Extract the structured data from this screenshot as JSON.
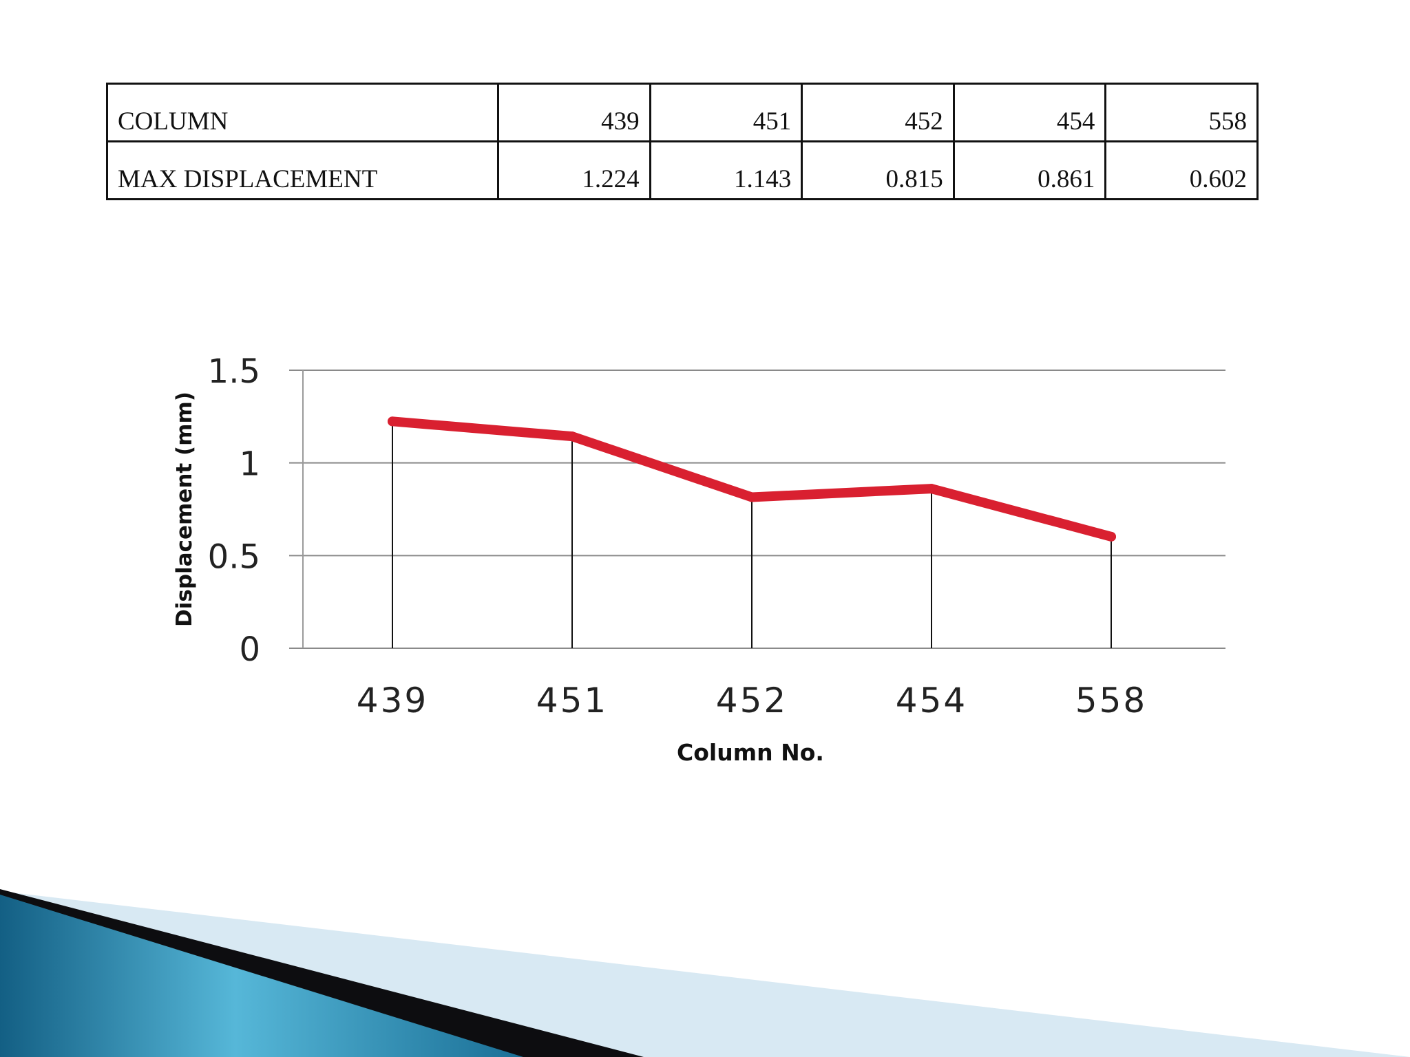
{
  "table": {
    "rows": [
      {
        "label": "COLUMN",
        "values": [
          "439",
          "451",
          "452",
          "454",
          "558"
        ]
      },
      {
        "label": "MAX DISPLACEMENT",
        "values": [
          "1.224",
          "1.143",
          "0.815",
          "0.861",
          "0.602"
        ]
      }
    ]
  },
  "chart_data": {
    "type": "line",
    "categories": [
      "439",
      "451",
      "452",
      "454",
      "558"
    ],
    "values": [
      1.224,
      1.143,
      0.815,
      0.861,
      0.602
    ],
    "title": "",
    "xlabel": "Column No.",
    "ylabel": "Displacement (mm)",
    "ylim": [
      0,
      1.5
    ],
    "yticks": [
      "0",
      "0.5",
      "1",
      "1.5"
    ],
    "grid": true,
    "drop_lines": true,
    "line_color": "#d92030"
  },
  "theme": {
    "decor_dark": "#0d0d10",
    "decor_teal": "#1f7fa8",
    "decor_light": "#d6e8f3"
  }
}
